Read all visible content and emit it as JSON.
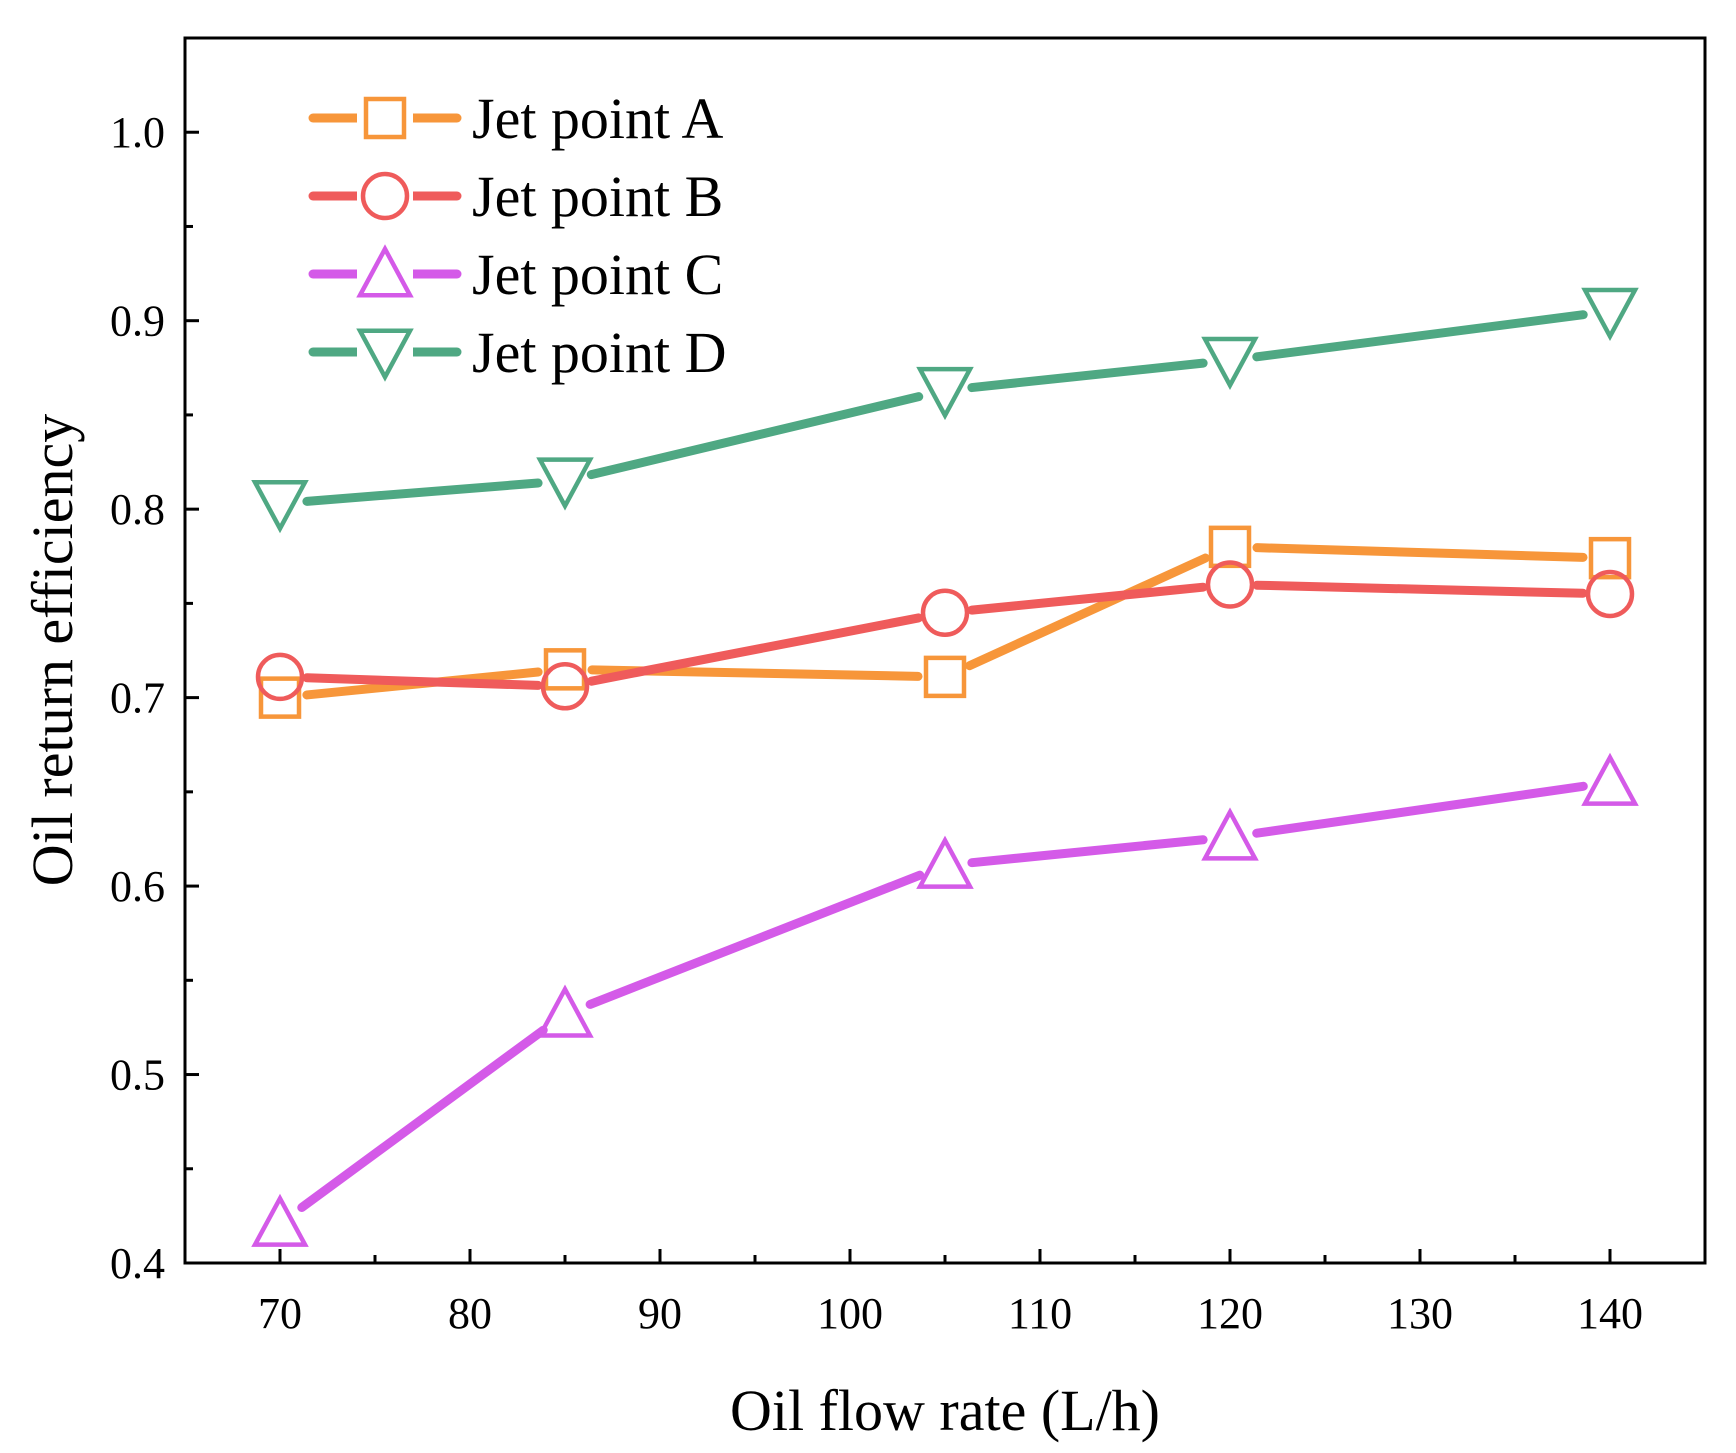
{
  "chart_data": {
    "type": "line",
    "title": "",
    "xlabel": "Oil flow rate (L/h)",
    "ylabel": "Oil return efficiency",
    "xlim": [
      65,
      145
    ],
    "ylim": [
      0.4,
      1.05
    ],
    "x_ticks": [
      "70",
      "80",
      "90",
      "100",
      "110",
      "120",
      "130",
      "140"
    ],
    "y_ticks": [
      "0.4",
      "0.5",
      "0.6",
      "0.7",
      "0.8",
      "0.9",
      "1.0"
    ],
    "grid": false,
    "legend_position": "top-left",
    "series": [
      {
        "name": "Jet point A",
        "marker": "square",
        "color": "#f7963a",
        "x": [
          70,
          85,
          105,
          120,
          140
        ],
        "y": [
          0.7,
          0.715,
          0.711,
          0.78,
          0.774
        ]
      },
      {
        "name": "Jet point B",
        "marker": "circle",
        "color": "#ef5b5b",
        "x": [
          70,
          85,
          105,
          120,
          140
        ],
        "y": [
          0.711,
          0.706,
          0.745,
          0.76,
          0.755
        ]
      },
      {
        "name": "Jet point C",
        "marker": "triangle-up",
        "color": "#d45ae8",
        "x": [
          70,
          85,
          105,
          120,
          140
        ],
        "y": [
          0.421,
          0.532,
          0.611,
          0.626,
          0.655
        ]
      },
      {
        "name": "Jet point D",
        "marker": "triangle-down",
        "color": "#4fa883",
        "x": [
          70,
          85,
          105,
          120,
          140
        ],
        "y": [
          0.803,
          0.815,
          0.863,
          0.879,
          0.905
        ]
      }
    ]
  }
}
